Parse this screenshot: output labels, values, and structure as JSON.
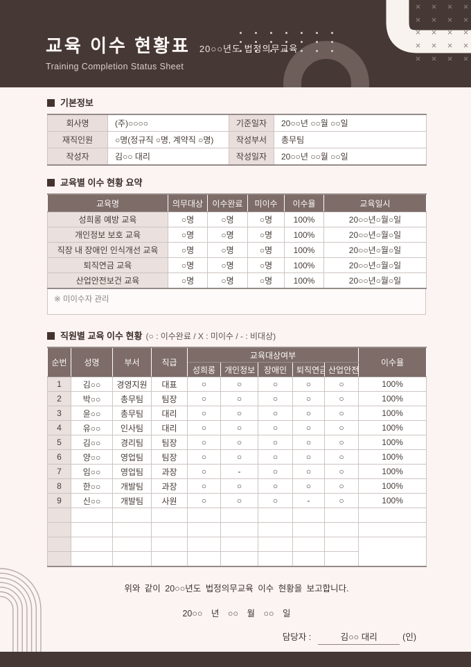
{
  "colors": {
    "brand-dark": "#463835",
    "table-header-brown": "#7d6c68",
    "label-pink": "#e9dedb",
    "page-bg": "#fbf4f2",
    "cell-border": "#cdc4c1",
    "cream": "#f9f3f0"
  },
  "header": {
    "title": "교육 이수 현황표",
    "subtitle": "20○○년도 법정의무교육",
    "subtitle_en": "Training Completion Status Sheet"
  },
  "sections": {
    "basic": {
      "title": "기본정보",
      "rows": [
        {
          "label1": "회사명",
          "value1": "(주)○○○○",
          "label2": "기준일자",
          "value2": "20○○년 ○○월 ○○일"
        },
        {
          "label1": "재직인원",
          "value1": "○명(정규직 ○명, 계약직 ○명)",
          "label2": "작성부서",
          "value2": "총무팀"
        },
        {
          "label1": "작성자",
          "value1": "김○○ 대리",
          "label2": "작성일자",
          "value2": "20○○년 ○○월 ○○일"
        }
      ]
    },
    "summary": {
      "title": "교육별 이수 현황 요약",
      "columns": [
        "교육명",
        "의무대상",
        "이수완료",
        "미이수",
        "이수율",
        "교육일시"
      ],
      "rows": [
        {
          "name": "성희롱 예방 교육",
          "target": "○명",
          "done": "○명",
          "undone": "○명",
          "rate": "100%",
          "date": "20○○년○월○일"
        },
        {
          "name": "개인정보 보호 교육",
          "target": "○명",
          "done": "○명",
          "undone": "○명",
          "rate": "100%",
          "date": "20○○년○월○일"
        },
        {
          "name": "직장 내 장애인 인식개선 교육",
          "target": "○명",
          "done": "○명",
          "undone": "○명",
          "rate": "100%",
          "date": "20○○년○월○일"
        },
        {
          "name": "퇴직연금 교육",
          "target": "○명",
          "done": "○명",
          "undone": "○명",
          "rate": "100%",
          "date": "20○○년○월○일"
        },
        {
          "name": "산업안전보건 교육",
          "target": "○명",
          "done": "○명",
          "undone": "○명",
          "rate": "100%",
          "date": "20○○년○월○일"
        }
      ],
      "note": "※ 미이수자 관리"
    },
    "staff": {
      "title": "직원별 교육 이수 현황",
      "legend": "(○ : 이수완료 / X : 미이수 / - : 비대상)",
      "columns": {
        "no": "순번",
        "name": "성명",
        "dept": "부서",
        "pos": "직급",
        "group": "교육대상여부",
        "subs": [
          "성희롱",
          "개인정보",
          "장애인",
          "퇴직연금",
          "산업안전"
        ],
        "rate": "이수율"
      },
      "rows": [
        {
          "no": "1",
          "name": "김○○",
          "dept": "경영지원",
          "pos": "대표",
          "marks": [
            "○",
            "○",
            "○",
            "○",
            "○"
          ],
          "rate": "100%"
        },
        {
          "no": "2",
          "name": "박○○",
          "dept": "총무팀",
          "pos": "팀장",
          "marks": [
            "○",
            "○",
            "○",
            "○",
            "○"
          ],
          "rate": "100%"
        },
        {
          "no": "3",
          "name": "윤○○",
          "dept": "총무팀",
          "pos": "대리",
          "marks": [
            "○",
            "○",
            "○",
            "○",
            "○"
          ],
          "rate": "100%"
        },
        {
          "no": "4",
          "name": "유○○",
          "dept": "인사팀",
          "pos": "대리",
          "marks": [
            "○",
            "○",
            "○",
            "○",
            "○"
          ],
          "rate": "100%"
        },
        {
          "no": "5",
          "name": "김○○",
          "dept": "경리팀",
          "pos": "팀장",
          "marks": [
            "○",
            "○",
            "○",
            "○",
            "○"
          ],
          "rate": "100%"
        },
        {
          "no": "6",
          "name": "양○○",
          "dept": "영업팀",
          "pos": "팀장",
          "marks": [
            "○",
            "○",
            "○",
            "○",
            "○"
          ],
          "rate": "100%"
        },
        {
          "no": "7",
          "name": "임○○",
          "dept": "영업팀",
          "pos": "과장",
          "marks": [
            "○",
            "-",
            "○",
            "○",
            "○"
          ],
          "rate": "100%"
        },
        {
          "no": "8",
          "name": "한○○",
          "dept": "개발팀",
          "pos": "과장",
          "marks": [
            "○",
            "○",
            "○",
            "○",
            "○"
          ],
          "rate": "100%"
        },
        {
          "no": "9",
          "name": "신○○",
          "dept": "개발팀",
          "pos": "사원",
          "marks": [
            "○",
            "○",
            "○",
            "-",
            "○"
          ],
          "rate": "100%"
        }
      ],
      "empty_rows": 4
    }
  },
  "footer": {
    "report_line": "위와 같이 20○○년도 법정의무교육 이수 현황을 보고합니다.",
    "date_line": "20○○ 년 ○○ 월 ○○ 일",
    "manager_label": "담당자 :",
    "manager_name": "김○○ 대리",
    "seal_label": "(인)"
  },
  "decor": {
    "x_glyph": "×"
  }
}
